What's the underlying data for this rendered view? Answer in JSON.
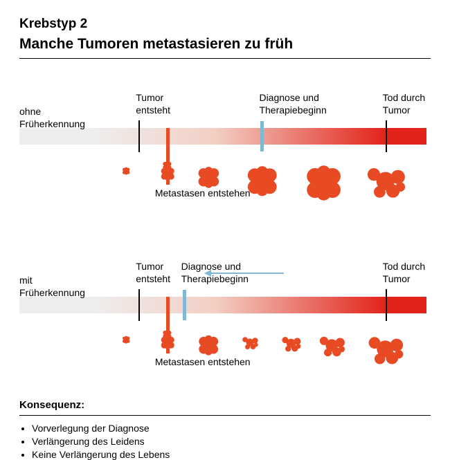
{
  "title": "Krebstyp 2",
  "subtitle": "Manche Tumoren metastasieren zu früh",
  "colors": {
    "accent": "#e84a24",
    "diag": "#7fb9d3",
    "gradient_start": "#eeeeee",
    "gradient_mid": "#f3cfc4",
    "gradient_end": "#e2231a",
    "text": "#000000",
    "arrow": "#7fb9d3"
  },
  "fontsize": {
    "h1": 19,
    "h2": 21,
    "label": 14,
    "kons": 15
  },
  "row1": {
    "left_label": "ohne\nFrüherkennung",
    "bar": {
      "left_pct": 0,
      "right_pct": 100
    },
    "markers": {
      "tumor": {
        "pos_pct": 29,
        "label": "Tumor\nentsteht"
      },
      "diagnosis": {
        "pos_pct": 59,
        "label": "Diagnose und\nTherapiebeginn"
      },
      "death": {
        "pos_pct": 89,
        "label": "Tod durch\nTumor"
      },
      "metastasis": {
        "pos_pct": 36,
        "label": "Metastasen entstehen"
      }
    },
    "cells": [
      {
        "x": 26,
        "size": 6
      },
      {
        "x": 36,
        "size": 11
      },
      {
        "x": 46,
        "size": 17
      },
      {
        "x": 59,
        "size": 24
      },
      {
        "x": 74,
        "size": 28
      },
      {
        "x": 89,
        "size": 24,
        "scatter": true
      }
    ]
  },
  "row2": {
    "left_label": "mit\nFrüherkennung",
    "bar": {
      "left_pct": 0,
      "right_pct": 100
    },
    "markers": {
      "tumor": {
        "pos_pct": 29,
        "label": "Tumor\nentsteht"
      },
      "diagnosis": {
        "pos_pct": 40,
        "label": "Diagnose und\nTherapiebeginn"
      },
      "death": {
        "pos_pct": 89,
        "label": "Tod durch\nTumor"
      },
      "metastasis": {
        "pos_pct": 36,
        "label": "Metastasen entstehen"
      }
    },
    "arrow": {
      "from_pct": 64,
      "to_pct": 46
    },
    "cells": [
      {
        "x": 26,
        "size": 6
      },
      {
        "x": 36,
        "size": 11
      },
      {
        "x": 46,
        "size": 16
      },
      {
        "x": 56,
        "size": 10,
        "scatter": true
      },
      {
        "x": 66,
        "size": 12,
        "scatter": true
      },
      {
        "x": 76,
        "size": 16,
        "scatter": true
      },
      {
        "x": 89,
        "size": 22,
        "scatter": true
      }
    ]
  },
  "consequence_heading": "Konsequenz:",
  "consequences": [
    "Vorverlegung der Diagnose",
    "Verlängerung des Leidens",
    "Keine Verlängerung des Lebens"
  ]
}
